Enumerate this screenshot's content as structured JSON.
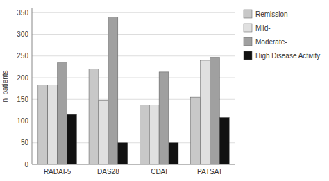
{
  "chart_data": {
    "type": "bar",
    "categories": [
      "RADAI-5",
      "DAS28",
      "CDAI",
      "PATSAT"
    ],
    "series": [
      {
        "name": "Remission",
        "color": "#c8c8c8",
        "values": [
          183,
          220,
          137,
          155
        ]
      },
      {
        "name": "Mild-",
        "color": "#e0e0e0",
        "values": [
          183,
          148,
          137,
          240
        ]
      },
      {
        "name": "Moderate-",
        "color": "#a0a0a0",
        "values": [
          234,
          340,
          213,
          247
        ]
      },
      {
        "name": "High Disease Activity",
        "color": "#111111",
        "values": [
          115,
          50,
          50,
          108
        ]
      }
    ],
    "ylabel": "n  patients",
    "ylim": [
      0,
      360
    ],
    "yticks": [
      0,
      50,
      100,
      150,
      200,
      250,
      300,
      350
    ],
    "grid": true,
    "legend": "right"
  }
}
